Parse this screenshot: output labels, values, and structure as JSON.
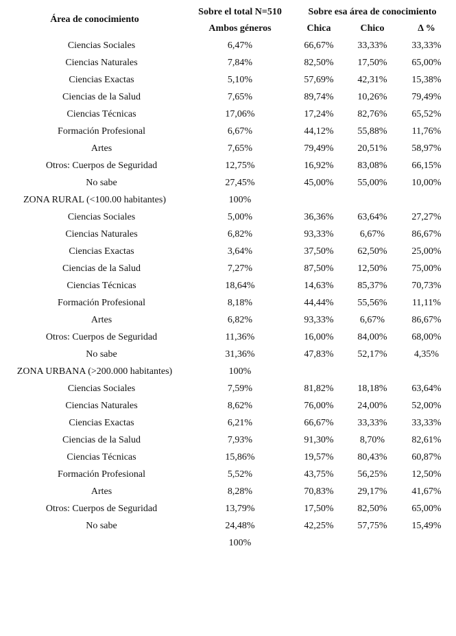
{
  "header": {
    "area": "Área de conocimiento",
    "total_group": "Sobre el total N=510",
    "area_group": "Sobre esa área de conocimiento",
    "both": "Ambos géneros",
    "chica": "Chica",
    "chico": "Chico",
    "delta": "Δ %"
  },
  "table": {
    "rows": [
      {
        "area": "Ciencias Sociales",
        "total": "6,47%",
        "chica": "66,67%",
        "chico": "33,33%",
        "delta": "33,33%"
      },
      {
        "area": "Ciencias Naturales",
        "total": "7,84%",
        "chica": "82,50%",
        "chico": "17,50%",
        "delta": "65,00%"
      },
      {
        "area": "Ciencias Exactas",
        "total": "5,10%",
        "chica": "57,69%",
        "chico": "42,31%",
        "delta": "15,38%"
      },
      {
        "area": "Ciencias de la Salud",
        "total": "7,65%",
        "chica": "89,74%",
        "chico": "10,26%",
        "delta": "79,49%"
      },
      {
        "area": "Ciencias Técnicas",
        "total": "17,06%",
        "chica": "17,24%",
        "chico": "82,76%",
        "delta": "65,52%"
      },
      {
        "area": "Formación Profesional",
        "total": "6,67%",
        "chica": "44,12%",
        "chico": "55,88%",
        "delta": "11,76%"
      },
      {
        "area": "Artes",
        "total": "7,65%",
        "chica": "79,49%",
        "chico": "20,51%",
        "delta": "58,97%"
      },
      {
        "area": "Otros: Cuerpos de Seguridad",
        "total": "12,75%",
        "chica": "16,92%",
        "chico": "83,08%",
        "delta": "66,15%"
      },
      {
        "area": "No sabe",
        "total": "27,45%",
        "chica": "45,00%",
        "chico": "55,00%",
        "delta": "10,00%"
      },
      {
        "area": "ZONA RURAL (<100.00 habitantes)",
        "total": "100%"
      },
      {
        "area": "Ciencias Sociales",
        "total": "5,00%",
        "chica": "36,36%",
        "chico": "63,64%",
        "delta": "27,27%"
      },
      {
        "area": "Ciencias Naturales",
        "total": "6,82%",
        "chica": "93,33%",
        "chico": "6,67%",
        "delta": "86,67%"
      },
      {
        "area": "Ciencias Exactas",
        "total": "3,64%",
        "chica": "37,50%",
        "chico": "62,50%",
        "delta": "25,00%"
      },
      {
        "area": "Ciencias de la Salud",
        "total": "7,27%",
        "chica": "87,50%",
        "chico": "12,50%",
        "delta": "75,00%"
      },
      {
        "area": "Ciencias Técnicas",
        "total": "18,64%",
        "chica": "14,63%",
        "chico": "85,37%",
        "delta": "70,73%"
      },
      {
        "area": "Formación Profesional",
        "total": "8,18%",
        "chica": "44,44%",
        "chico": "55,56%",
        "delta": "11,11%"
      },
      {
        "area": "Artes",
        "total": "6,82%",
        "chica": "93,33%",
        "chico": "6,67%",
        "delta": "86,67%"
      },
      {
        "area": "Otros: Cuerpos de Seguridad",
        "total": "11,36%",
        "chica": "16,00%",
        "chico": "84,00%",
        "delta": "68,00%"
      },
      {
        "area": "No sabe",
        "total": "31,36%",
        "chica": "47,83%",
        "chico": "52,17%",
        "delta": "4,35%"
      },
      {
        "area": "ZONA URBANA (>200.000 habitantes)",
        "total": "100%"
      },
      {
        "area": "Ciencias Sociales",
        "total": "7,59%",
        "chica": "81,82%",
        "chico": "18,18%",
        "delta": "63,64%"
      },
      {
        "area": "Ciencias Naturales",
        "total": "8,62%",
        "chica": "76,00%",
        "chico": "24,00%",
        "delta": "52,00%"
      },
      {
        "area": "Ciencias Exactas",
        "total": "6,21%",
        "chica": "66,67%",
        "chico": "33,33%",
        "delta": "33,33%"
      },
      {
        "area": "Ciencias de la Salud",
        "total": "7,93%",
        "chica": "91,30%",
        "chico": "8,70%",
        "delta": "82,61%"
      },
      {
        "area": "Ciencias Técnicas",
        "total": "15,86%",
        "chica": "19,57%",
        "chico": "80,43%",
        "delta": "60,87%"
      },
      {
        "area": "Formación Profesional",
        "total": "5,52%",
        "chica": "43,75%",
        "chico": "56,25%",
        "delta": "12,50%"
      },
      {
        "area": "Artes",
        "total": "8,28%",
        "chica": "70,83%",
        "chico": "29,17%",
        "delta": "41,67%"
      },
      {
        "area": "Otros: Cuerpos de Seguridad",
        "total": "13,79%",
        "chica": "17,50%",
        "chico": "82,50%",
        "delta": "65,00%"
      },
      {
        "area": "No sabe",
        "total": "24,48%",
        "chica": "42,25%",
        "chico": "57,75%",
        "delta": "15,49%"
      },
      {
        "total": "100%"
      }
    ]
  }
}
